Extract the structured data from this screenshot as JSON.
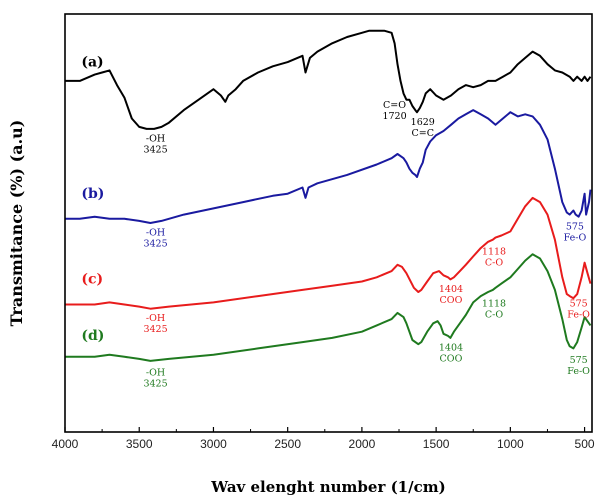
{
  "chart_data": {
    "type": "line",
    "xlabel": "Wav elenght number (1/cm)",
    "ylabel": "Transmitance (%) (a.u)",
    "xlim": [
      4000,
      450
    ],
    "x_reversed": true,
    "x_ticks": [
      "4000",
      "3500",
      "3000",
      "2500",
      "2000",
      "1500",
      "1000",
      "500"
    ],
    "x_tick_values": [
      4000,
      3500,
      3000,
      2500,
      2000,
      1500,
      1000,
      500
    ],
    "ylim": [
      0,
      100
    ],
    "y_ticks_shown": false,
    "grid": false,
    "legend": "none",
    "series": [
      {
        "name": "(a)",
        "color": "#000000",
        "x": [
          4000,
          3900,
          3800,
          3750,
          3700,
          3650,
          3600,
          3550,
          3500,
          3450,
          3425,
          3400,
          3350,
          3300,
          3200,
          3100,
          3000,
          2950,
          2920,
          2900,
          2850,
          2800,
          2700,
          2600,
          2500,
          2400,
          2380,
          2350,
          2300,
          2200,
          2100,
          2000,
          1950,
          1900,
          1850,
          1800,
          1780,
          1760,
          1740,
          1720,
          1700,
          1680,
          1660,
          1640,
          1629,
          1610,
          1590,
          1570,
          1540,
          1500,
          1450,
          1400,
          1350,
          1300,
          1250,
          1200,
          1150,
          1100,
          1050,
          1000,
          950,
          900,
          850,
          800,
          750,
          700,
          650,
          600,
          575,
          550,
          520,
          500,
          480,
          460
        ],
        "y": [
          84,
          84,
          85.5,
          86,
          86.5,
          83,
          80,
          75,
          73,
          72.5,
          72.5,
          72.5,
          73,
          74,
          77,
          79.5,
          82,
          80.5,
          79,
          80.5,
          82,
          84,
          86,
          87.5,
          88.5,
          90,
          86,
          89.5,
          91,
          93,
          94.5,
          95.5,
          96,
          96,
          96,
          95.5,
          93,
          88,
          84,
          81,
          79.5,
          79.5,
          78,
          77,
          76.5,
          77.5,
          79,
          81,
          82,
          80.5,
          79.5,
          80.5,
          82,
          83,
          82.5,
          83,
          84,
          84,
          85,
          86,
          88,
          89.5,
          91,
          90,
          88,
          86.5,
          86,
          85,
          84,
          85,
          84,
          85,
          84,
          85
        ]
      },
      {
        "name": "(b)",
        "color": "#1a1aa0",
        "x": [
          4000,
          3900,
          3800,
          3700,
          3600,
          3500,
          3425,
          3350,
          3200,
          3000,
          2800,
          2600,
          2500,
          2400,
          2380,
          2360,
          2300,
          2100,
          1900,
          1800,
          1760,
          1740,
          1720,
          1700,
          1680,
          1660,
          1640,
          1629,
          1610,
          1590,
          1570,
          1540,
          1500,
          1450,
          1400,
          1350,
          1300,
          1250,
          1200,
          1150,
          1100,
          1050,
          1000,
          950,
          900,
          850,
          800,
          750,
          700,
          650,
          620,
          600,
          575,
          560,
          540,
          520,
          500,
          490,
          470,
          460
        ],
        "y": [
          51,
          51,
          51.5,
          51,
          51,
          50.5,
          50,
          50.5,
          52,
          53.5,
          55,
          56.5,
          57,
          58.5,
          56,
          58.5,
          59.5,
          61.5,
          64,
          65.5,
          66.5,
          66,
          65.5,
          64.5,
          63,
          62,
          61.5,
          61,
          63,
          64.5,
          67.5,
          69.5,
          71,
          72,
          73.5,
          75,
          76,
          77,
          76,
          75,
          73.5,
          75,
          76.5,
          75.5,
          76,
          75.5,
          73.5,
          70,
          63,
          55,
          52.5,
          52,
          53,
          52,
          51.5,
          53,
          57,
          52,
          55,
          58
        ]
      },
      {
        "name": "(c)",
        "color": "#e81c1c",
        "x": [
          4000,
          3800,
          3700,
          3600,
          3500,
          3425,
          3300,
          3000,
          2700,
          2400,
          2200,
          2000,
          1900,
          1800,
          1760,
          1730,
          1700,
          1650,
          1620,
          1600,
          1560,
          1520,
          1480,
          1450,
          1420,
          1404,
          1380,
          1340,
          1300,
          1250,
          1200,
          1150,
          1118,
          1100,
          1060,
          1000,
          950,
          900,
          850,
          800,
          750,
          700,
          650,
          620,
          600,
          575,
          550,
          520,
          500,
          480,
          460
        ],
        "y": [
          30.5,
          30.5,
          31,
          30.5,
          30,
          29.5,
          30,
          31,
          32.5,
          34,
          35,
          36,
          37,
          38.5,
          40,
          39.5,
          38,
          34.5,
          33.5,
          34,
          36,
          38,
          38.5,
          37.5,
          37,
          36.5,
          37,
          38.5,
          40,
          42,
          44,
          45.5,
          46,
          46.5,
          47,
          48,
          51,
          54,
          56,
          55,
          52,
          46,
          37,
          33,
          32.5,
          32,
          33,
          37,
          40.5,
          38,
          35.5
        ]
      },
      {
        "name": "(d)",
        "color": "#1f7a1f",
        "x": [
          4000,
          3800,
          3700,
          3600,
          3500,
          3425,
          3300,
          3000,
          2700,
          2400,
          2200,
          2000,
          1900,
          1800,
          1760,
          1720,
          1700,
          1660,
          1620,
          1600,
          1560,
          1520,
          1490,
          1470,
          1450,
          1420,
          1404,
          1380,
          1340,
          1300,
          1250,
          1200,
          1150,
          1118,
          1100,
          1060,
          1000,
          950,
          900,
          850,
          800,
          750,
          700,
          650,
          620,
          600,
          575,
          550,
          520,
          500,
          480,
          460
        ],
        "y": [
          18,
          18,
          18.5,
          18,
          17.5,
          17,
          17.5,
          18.5,
          20,
          21.5,
          22.5,
          24,
          25.5,
          27,
          28.5,
          27.5,
          26,
          22,
          21,
          21.5,
          24,
          26,
          26.5,
          25.5,
          23.5,
          23,
          22.5,
          24,
          26,
          28,
          31,
          32.5,
          33.5,
          34,
          34.5,
          35.5,
          37,
          39,
          41,
          42.5,
          41.5,
          38.5,
          34,
          27,
          22,
          20.5,
          20,
          21.5,
          25,
          27.5,
          26.5,
          25.5
        ]
      }
    ],
    "curve_labels": [
      {
        "text": "(a)",
        "x": 3890,
        "y": 87.5,
        "color": "#000000"
      },
      {
        "text": "(b)",
        "x": 3890,
        "y": 56,
        "color": "#1a1aa0"
      },
      {
        "text": "(c)",
        "x": 3890,
        "y": 35.5,
        "color": "#e81c1c"
      },
      {
        "text": "(d)",
        "x": 3890,
        "y": 22,
        "color": "#1f7a1f"
      }
    ],
    "annotations": [
      {
        "lines": [
          "-OH",
          "3425"
        ],
        "x": 3390,
        "y": 69.5,
        "color": "#000000"
      },
      {
        "lines": [
          "C=O",
          "1720"
        ],
        "x": 1780,
        "y": 77.5,
        "color": "#000000"
      },
      {
        "lines": [
          "1629",
          "C=C"
        ],
        "x": 1590,
        "y": 73.5,
        "color": "#000000"
      },
      {
        "lines": [
          "-OH",
          "3425"
        ],
        "x": 3390,
        "y": 47,
        "color": "#1a1aa0"
      },
      {
        "lines": [
          "575",
          "Fe-O"
        ],
        "x": 565,
        "y": 48.5,
        "color": "#1a1aa0"
      },
      {
        "lines": [
          "1118",
          "C-O"
        ],
        "x": 1110,
        "y": 42.5,
        "color": "#e81c1c"
      },
      {
        "lines": [
          "1404",
          "COO"
        ],
        "x": 1400,
        "y": 33.5,
        "color": "#e81c1c"
      },
      {
        "lines": [
          "-OH",
          "3425"
        ],
        "x": 3390,
        "y": 26.5,
        "color": "#e81c1c"
      },
      {
        "lines": [
          "575",
          "Fe-O"
        ],
        "x": 540,
        "y": 30,
        "color": "#e81c1c"
      },
      {
        "lines": [
          "1118",
          "C-O"
        ],
        "x": 1110,
        "y": 30,
        "color": "#1f7a1f"
      },
      {
        "lines": [
          "1404",
          "COO"
        ],
        "x": 1400,
        "y": 19.5,
        "color": "#1f7a1f"
      },
      {
        "lines": [
          "-OH",
          "3425"
        ],
        "x": 3390,
        "y": 13.5,
        "color": "#1f7a1f"
      },
      {
        "lines": [
          "575",
          "Fe-O"
        ],
        "x": 540,
        "y": 16.5,
        "color": "#1f7a1f"
      }
    ]
  }
}
